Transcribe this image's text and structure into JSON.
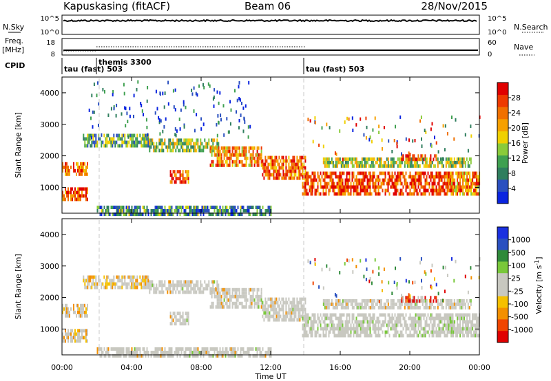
{
  "header": {
    "station": "Kapuskasing (fitACF)",
    "beam": "Beam 06",
    "date": "28/Nov/2015"
  },
  "noise_panel": {
    "left_label": "N.Sky",
    "left_ticks": [
      "10^5",
      "10^0"
    ],
    "right_label": "N.Search",
    "right_ticks": [
      "10^5",
      "10^0"
    ]
  },
  "freq_panel": {
    "left_label_line1": "Freq.",
    "left_label_line2": "[MHz]",
    "left_ticks": [
      "18",
      "8"
    ],
    "right_label": "Nave",
    "right_ticks": [
      "60",
      "0"
    ]
  },
  "cpid": {
    "label": "CPID",
    "segments": [
      {
        "text": "tau (fast) 503",
        "start_hour": 0
      },
      {
        "text": "themis 3300",
        "start_hour": 2
      },
      {
        "text": "tau (fast) 503",
        "start_hour": 14
      }
    ]
  },
  "colors": {
    "power_scale": [
      "#0a24e0",
      "#2a4fbf",
      "#2f7e5e",
      "#3fa050",
      "#8acb3a",
      "#f0d000",
      "#f6a000",
      "#f07000",
      "#ee3a00",
      "#e00000"
    ],
    "velocity_scale": [
      "#e00000",
      "#f04500",
      "#f39000",
      "#f5c000",
      "#c8c8c0",
      "#c8c8c0",
      "#79c83a",
      "#2f8a3a",
      "#2a50c0",
      "#1a30e0"
    ],
    "scatter_gray": "#c8c8c0"
  },
  "chart_data": [
    {
      "type": "heatmap",
      "name": "power",
      "ylabel": "Slant Range [km]",
      "xlim_hours": [
        0,
        24
      ],
      "ylim_km": [
        180,
        4500
      ],
      "yticks": [
        1000,
        2000,
        3000,
        4000
      ],
      "colorbar": {
        "label": "Power [dB]",
        "range": [
          0,
          32
        ],
        "ticks": [
          4,
          8,
          12,
          16,
          20,
          24,
          28
        ]
      },
      "echo_bands": [
        {
          "t0": 0.0,
          "t1": 1.5,
          "r0": 1450,
          "r1": 1800,
          "level": 0.75
        },
        {
          "t0": 0.0,
          "t1": 1.5,
          "r0": 600,
          "r1": 1000,
          "level": 0.8
        },
        {
          "t0": 1.2,
          "t1": 5.0,
          "r0": 2300,
          "r1": 2700,
          "level": 0.35
        },
        {
          "t0": 5.0,
          "t1": 9.0,
          "r0": 2150,
          "r1": 2550,
          "level": 0.45
        },
        {
          "t0": 8.5,
          "t1": 11.5,
          "r0": 1700,
          "r1": 2300,
          "level": 0.7
        },
        {
          "t0": 11.5,
          "t1": 14.0,
          "r0": 1300,
          "r1": 2000,
          "level": 0.75
        },
        {
          "t0": 6.2,
          "t1": 7.3,
          "r0": 1150,
          "r1": 1550,
          "level": 0.8
        },
        {
          "t0": 13.8,
          "t1": 22.5,
          "r0": 800,
          "r1": 1500,
          "level": 0.85
        },
        {
          "t0": 15.0,
          "t1": 23.5,
          "r0": 1650,
          "r1": 1950,
          "level": 0.45
        },
        {
          "t0": 22.3,
          "t1": 24.0,
          "r0": 800,
          "r1": 1500,
          "level": 0.7
        },
        {
          "t0": 19.5,
          "t1": 21.5,
          "r0": 1850,
          "r1": 2050,
          "level": 0.85
        },
        {
          "t0": 2.0,
          "t1": 12.0,
          "r0": 200,
          "r1": 420,
          "level": 0.3
        }
      ]
    },
    {
      "type": "heatmap",
      "name": "velocity",
      "ylabel": "Slant Range [km]",
      "xlabel": "Time UT",
      "xlim_hours": [
        0,
        24
      ],
      "ylim_km": [
        180,
        4500
      ],
      "yticks": [
        1000,
        2000,
        3000,
        4000
      ],
      "xticks": [
        "00:00",
        "04:00",
        "08:00",
        "12:00",
        "16:00",
        "20:00",
        "00:00"
      ],
      "colorbar": {
        "label": "Velocity [m s",
        "label_sup": "-1",
        "label_close": "]",
        "ticks": [
          "1000",
          "500",
          "100",
          "25",
          "-25",
          "-100",
          "-500",
          "-1000"
        ]
      }
    }
  ]
}
